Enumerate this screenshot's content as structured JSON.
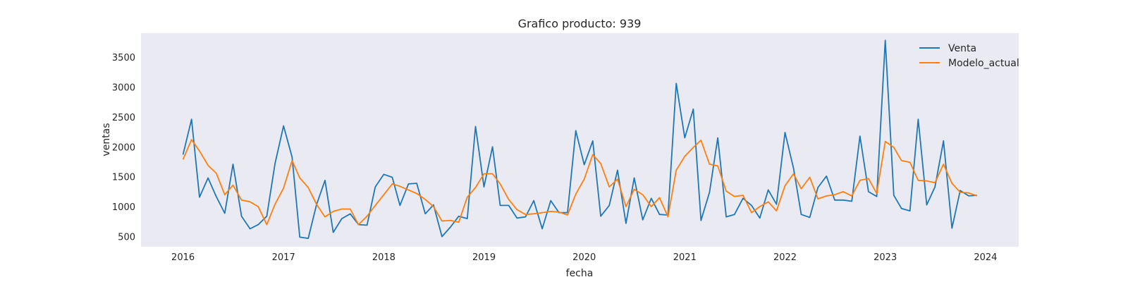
{
  "chart_data": {
    "type": "line",
    "title": "Grafico producto: 939",
    "xlabel": "fecha",
    "ylabel": "ventas",
    "x_start": "2016-01",
    "x_frequency": "monthly",
    "xlim": [
      "2015-08-01",
      "2024-05-01"
    ],
    "ylim": [
      330,
      3900
    ],
    "x_ticks": [
      "2016",
      "2017",
      "2018",
      "2019",
      "2020",
      "2021",
      "2022",
      "2023",
      "2024"
    ],
    "y_ticks": [
      500,
      1000,
      1500,
      2000,
      2500,
      3000,
      3500
    ],
    "grid": false,
    "background": "#eaeaf2",
    "legend_position": "top-right",
    "series": [
      {
        "name": "Venta",
        "color": "#1f77b4",
        "values": [
          1870,
          2460,
          1160,
          1480,
          1170,
          890,
          1710,
          840,
          630,
          700,
          840,
          1720,
          2350,
          1830,
          490,
          470,
          1030,
          1440,
          570,
          800,
          880,
          700,
          690,
          1330,
          1540,
          1490,
          1020,
          1380,
          1390,
          880,
          1030,
          500,
          660,
          840,
          800,
          2340,
          1330,
          2000,
          1020,
          1020,
          810,
          830,
          1100,
          630,
          1100,
          900,
          900,
          2270,
          1700,
          2100,
          840,
          1020,
          1610,
          720,
          1480,
          780,
          1140,
          870,
          860,
          3060,
          2150,
          2630,
          770,
          1240,
          2150,
          830,
          870,
          1140,
          1020,
          810,
          1280,
          1040,
          2240,
          1640,
          870,
          820,
          1320,
          1510,
          1110,
          1110,
          1090,
          2180,
          1250,
          1170,
          3780,
          1190,
          970,
          930,
          2460,
          1030,
          1330,
          2100,
          640,
          1270,
          1180,
          1190
        ]
      },
      {
        "name": "Modelo_actual",
        "color": "#ff7f0e",
        "values": [
          1790,
          2120,
          1930,
          1690,
          1560,
          1200,
          1360,
          1110,
          1080,
          1000,
          700,
          1040,
          1310,
          1770,
          1480,
          1320,
          1040,
          830,
          920,
          960,
          960,
          700,
          840,
          1020,
          1200,
          1380,
          1340,
          1280,
          1220,
          1120,
          1000,
          760,
          770,
          740,
          1160,
          1320,
          1550,
          1550,
          1380,
          1120,
          950,
          870,
          880,
          900,
          920,
          910,
          860,
          1210,
          1460,
          1870,
          1720,
          1330,
          1460,
          1000,
          1290,
          1200,
          1000,
          1150,
          830,
          1610,
          1840,
          1990,
          2110,
          1710,
          1680,
          1260,
          1170,
          1190,
          900,
          1000,
          1080,
          930,
          1350,
          1550,
          1300,
          1490,
          1130,
          1180,
          1200,
          1250,
          1180,
          1440,
          1470,
          1220,
          2090,
          1990,
          1770,
          1740,
          1440,
          1430,
          1400,
          1710,
          1390,
          1240,
          1230,
          1180
        ]
      }
    ]
  }
}
